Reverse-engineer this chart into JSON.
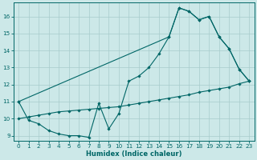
{
  "xlabel": "Humidex (Indice chaleur)",
  "bg_color": "#cce8e8",
  "grid_color": "#a8cccc",
  "line_color": "#006666",
  "xlim": [
    -0.5,
    23.5
  ],
  "ylim": [
    8.7,
    16.8
  ],
  "yticks": [
    9,
    10,
    11,
    12,
    13,
    14,
    15,
    16
  ],
  "xticks": [
    0,
    1,
    2,
    3,
    4,
    5,
    6,
    7,
    8,
    9,
    10,
    11,
    12,
    13,
    14,
    15,
    16,
    17,
    18,
    19,
    20,
    21,
    22,
    23
  ],
  "line1_x": [
    0,
    1,
    2,
    3,
    4,
    5,
    6,
    7,
    8,
    9,
    10,
    11,
    12,
    13,
    14,
    15,
    16,
    17,
    18,
    19,
    20,
    21,
    22,
    23
  ],
  "line1_y": [
    11.0,
    9.9,
    9.7,
    9.3,
    9.1,
    9.0,
    9.0,
    8.9,
    10.9,
    9.4,
    10.3,
    12.2,
    12.5,
    13.0,
    13.8,
    14.8,
    16.5,
    16.3,
    15.8,
    16.0,
    14.8,
    14.1,
    12.9,
    12.2
  ],
  "line2_x": [
    0,
    15,
    16,
    17,
    18,
    19,
    20,
    21,
    22,
    23
  ],
  "line2_y": [
    11.0,
    14.8,
    16.5,
    16.3,
    15.8,
    16.0,
    14.8,
    14.1,
    12.9,
    12.2
  ],
  "line3_x": [
    0,
    1,
    2,
    3,
    4,
    5,
    6,
    7,
    8,
    9,
    10,
    11,
    12,
    13,
    14,
    15,
    16,
    17,
    18,
    19,
    20,
    21,
    22,
    23
  ],
  "line3_y": [
    10.0,
    10.1,
    10.2,
    10.3,
    10.4,
    10.45,
    10.5,
    10.55,
    10.6,
    10.65,
    10.7,
    10.8,
    10.9,
    11.0,
    11.1,
    11.2,
    11.3,
    11.4,
    11.55,
    11.65,
    11.75,
    11.85,
    12.05,
    12.2
  ]
}
